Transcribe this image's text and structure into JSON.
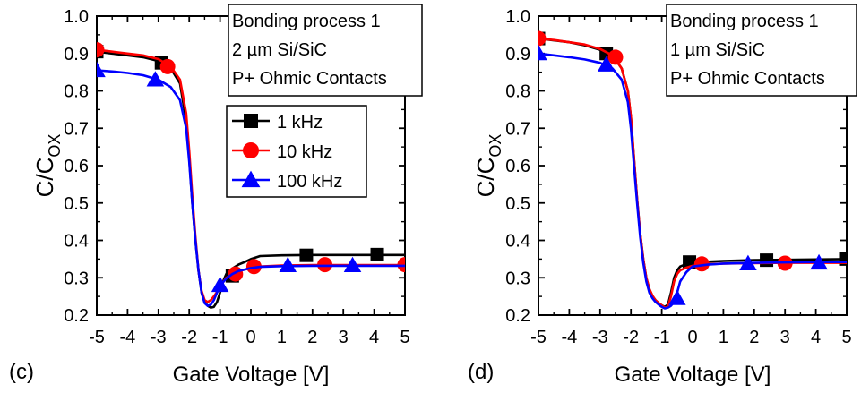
{
  "chart_data": [
    {
      "type": "line",
      "panel_label": "(c)",
      "xlabel": "Gate Voltage [V]",
      "ylabel_main": "C/C",
      "ylabel_sub": "OX",
      "xlim": [
        -5,
        5
      ],
      "ylim": [
        0.2,
        1.0
      ],
      "xticks": [
        "-5",
        "-4",
        "-3",
        "-2",
        "-1",
        "0",
        "1",
        "2",
        "3",
        "4",
        "5"
      ],
      "yticks": [
        "0.2",
        "0.3",
        "0.4",
        "0.5",
        "0.6",
        "0.7",
        "0.8",
        "0.9",
        "1.0"
      ],
      "annotation": [
        "Bonding process 1",
        "2 µm Si/SiC",
        "P+ Ohmic Contacts"
      ],
      "legend": "center-right",
      "series": [
        {
          "name": "1 kHz",
          "color": "#000000",
          "marker": "square",
          "x": [
            -5,
            -4.5,
            -4,
            -3.5,
            -3,
            -2.6,
            -2.3,
            -2.1,
            -2.0,
            -1.9,
            -1.8,
            -1.7,
            -1.6,
            -1.5,
            -1.4,
            -1.3,
            -1.2,
            -1.1,
            -1.0,
            -0.9,
            -0.8,
            -0.6,
            -0.4,
            -0.2,
            0,
            0.3,
            1,
            2,
            3,
            4,
            5
          ],
          "y": [
            0.905,
            0.9,
            0.895,
            0.89,
            0.88,
            0.86,
            0.82,
            0.72,
            0.62,
            0.5,
            0.4,
            0.32,
            0.26,
            0.235,
            0.225,
            0.22,
            0.222,
            0.235,
            0.26,
            0.29,
            0.31,
            0.325,
            0.335,
            0.342,
            0.35,
            0.358,
            0.36,
            0.361,
            0.361,
            0.361,
            0.361
          ],
          "marker_x": [
            -5,
            -2.9,
            -0.6,
            1.8,
            4.1
          ],
          "marker_y": [
            0.905,
            0.875,
            0.305,
            0.36,
            0.362
          ]
        },
        {
          "name": "10 kHz",
          "color": "#ff0000",
          "marker": "circle",
          "x": [
            -5,
            -4.5,
            -4,
            -3.5,
            -3,
            -2.6,
            -2.3,
            -2.1,
            -2.0,
            -1.9,
            -1.8,
            -1.7,
            -1.6,
            -1.5,
            -1.4,
            -1.3,
            -1.2,
            -1.1,
            -1.0,
            -0.9,
            -0.8,
            -0.6,
            -0.4,
            -0.2,
            0,
            0.3,
            1,
            2,
            3,
            4,
            5
          ],
          "y": [
            0.91,
            0.905,
            0.9,
            0.895,
            0.885,
            0.865,
            0.83,
            0.74,
            0.64,
            0.52,
            0.41,
            0.32,
            0.265,
            0.24,
            0.235,
            0.24,
            0.25,
            0.262,
            0.275,
            0.288,
            0.3,
            0.31,
            0.318,
            0.322,
            0.326,
            0.33,
            0.333,
            0.334,
            0.334,
            0.334,
            0.334
          ],
          "marker_x": [
            -5,
            -2.7,
            -0.5,
            0.1,
            2.4,
            5
          ],
          "marker_y": [
            0.91,
            0.865,
            0.31,
            0.33,
            0.335,
            0.335
          ]
        },
        {
          "name": "100 kHz",
          "color": "#0000ff",
          "marker": "triangle",
          "x": [
            -5,
            -4.5,
            -4,
            -3.5,
            -3,
            -2.6,
            -2.3,
            -2.1,
            -2.0,
            -1.9,
            -1.8,
            -1.7,
            -1.6,
            -1.5,
            -1.4,
            -1.3,
            -1.2,
            -1.1,
            -1.0,
            -0.9,
            -0.8,
            -0.6,
            -0.4,
            -0.2,
            0,
            0.3,
            1,
            2,
            3,
            4,
            5
          ],
          "y": [
            0.855,
            0.852,
            0.848,
            0.842,
            0.83,
            0.81,
            0.775,
            0.7,
            0.61,
            0.5,
            0.4,
            0.32,
            0.26,
            0.232,
            0.225,
            0.228,
            0.24,
            0.26,
            0.275,
            0.288,
            0.298,
            0.31,
            0.318,
            0.322,
            0.326,
            0.329,
            0.331,
            0.332,
            0.332,
            0.332,
            0.332
          ],
          "marker_x": [
            -5,
            -3.1,
            -1.0,
            1.2,
            3.3
          ],
          "marker_y": [
            0.855,
            0.83,
            0.28,
            0.333,
            0.333
          ]
        }
      ]
    },
    {
      "type": "line",
      "panel_label": "(d)",
      "xlabel": "Gate Voltage [V]",
      "ylabel_main": "C/C",
      "ylabel_sub": "OX",
      "xlim": [
        -5,
        5
      ],
      "ylim": [
        0.2,
        1.0
      ],
      "xticks": [
        "-5",
        "-4",
        "-3",
        "-2",
        "-1",
        "0",
        "1",
        "2",
        "3",
        "4",
        "5"
      ],
      "yticks": [
        "0.2",
        "0.3",
        "0.4",
        "0.5",
        "0.6",
        "0.7",
        "0.8",
        "0.9",
        "1.0"
      ],
      "annotation": [
        "Bonding process 1",
        "1 µm Si/SiC",
        "P+ Ohmic Contacts"
      ],
      "series": [
        {
          "name": "1 kHz",
          "color": "#000000",
          "marker": "square",
          "x": [
            -5,
            -4.5,
            -4,
            -3.5,
            -3,
            -2.6,
            -2.3,
            -2.1,
            -2.0,
            -1.9,
            -1.8,
            -1.7,
            -1.6,
            -1.5,
            -1.4,
            -1.3,
            -1.2,
            -1.1,
            -1.0,
            -0.9,
            -0.8,
            -0.7,
            -0.6,
            -0.5,
            -0.4,
            -0.2,
            0,
            0.5,
            1,
            2,
            3,
            4,
            5
          ],
          "y": [
            0.94,
            0.935,
            0.93,
            0.922,
            0.91,
            0.895,
            0.86,
            0.8,
            0.73,
            0.62,
            0.51,
            0.42,
            0.35,
            0.3,
            0.27,
            0.25,
            0.24,
            0.232,
            0.226,
            0.222,
            0.228,
            0.26,
            0.3,
            0.32,
            0.33,
            0.337,
            0.34,
            0.343,
            0.345,
            0.347,
            0.348,
            0.349,
            0.35
          ],
          "marker_x": [
            -5,
            -2.8,
            -0.1,
            2.4,
            5
          ],
          "marker_y": [
            0.94,
            0.9,
            0.342,
            0.347,
            0.35
          ]
        },
        {
          "name": "10 kHz",
          "color": "#ff0000",
          "marker": "circle",
          "x": [
            -5,
            -4.5,
            -4,
            -3.5,
            -3,
            -2.6,
            -2.3,
            -2.1,
            -2.0,
            -1.9,
            -1.8,
            -1.7,
            -1.6,
            -1.5,
            -1.4,
            -1.3,
            -1.2,
            -1.1,
            -1.0,
            -0.9,
            -0.8,
            -0.7,
            -0.6,
            -0.5,
            -0.4,
            -0.2,
            0,
            0.5,
            1,
            2,
            3,
            4,
            5
          ],
          "y": [
            0.94,
            0.936,
            0.93,
            0.924,
            0.912,
            0.895,
            0.86,
            0.8,
            0.73,
            0.62,
            0.51,
            0.42,
            0.35,
            0.3,
            0.27,
            0.252,
            0.24,
            0.232,
            0.226,
            0.22,
            0.222,
            0.25,
            0.29,
            0.31,
            0.32,
            0.327,
            0.332,
            0.336,
            0.338,
            0.339,
            0.34,
            0.34,
            0.34
          ],
          "marker_x": [
            -5,
            -2.5,
            0.3,
            3.0
          ],
          "marker_y": [
            0.94,
            0.89,
            0.337,
            0.339
          ]
        },
        {
          "name": "100 kHz",
          "color": "#0000ff",
          "marker": "triangle",
          "x": [
            -5,
            -4.5,
            -4,
            -3.5,
            -3,
            -2.6,
            -2.3,
            -2.1,
            -2.0,
            -1.9,
            -1.8,
            -1.7,
            -1.6,
            -1.5,
            -1.4,
            -1.3,
            -1.2,
            -1.1,
            -1.0,
            -0.9,
            -0.8,
            -0.7,
            -0.6,
            -0.5,
            -0.4,
            -0.2,
            0,
            0.5,
            1,
            2,
            3,
            4,
            5
          ],
          "y": [
            0.9,
            0.895,
            0.89,
            0.884,
            0.875,
            0.86,
            0.83,
            0.77,
            0.7,
            0.6,
            0.5,
            0.41,
            0.34,
            0.29,
            0.26,
            0.245,
            0.235,
            0.228,
            0.222,
            0.218,
            0.22,
            0.225,
            0.235,
            0.26,
            0.29,
            0.315,
            0.33,
            0.335,
            0.338,
            0.34,
            0.341,
            0.342,
            0.342
          ],
          "marker_x": [
            -5,
            -2.8,
            -0.5,
            1.8,
            4.1
          ],
          "marker_y": [
            0.9,
            0.87,
            0.245,
            0.338,
            0.34
          ]
        }
      ]
    }
  ]
}
